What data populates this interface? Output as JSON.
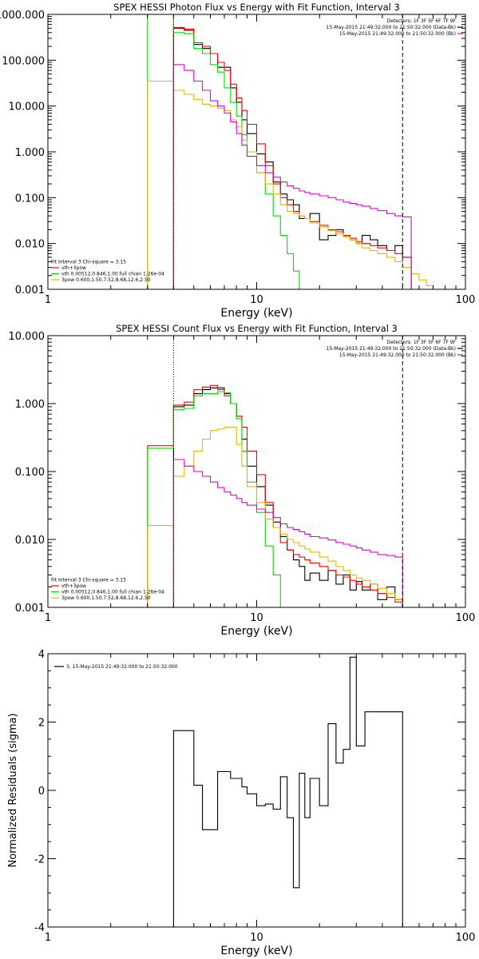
{
  "colors": {
    "data": "#000000",
    "total": "#ff0000",
    "vth": "#00dd00",
    "3pow": "#ddbb00",
    "background": "#dd00dd",
    "axes": "#000000"
  },
  "chart_data": [
    {
      "type": "line",
      "title": "SPEX HESSI Photon Flux vs Energy with Fit Function, Interval 3",
      "xlabel": "Energy (keV)",
      "ylabel": "",
      "x_scale": "log",
      "y_scale": "log",
      "xlim": [
        1,
        100
      ],
      "ylim": [
        0.001,
        1000
      ],
      "xticks": [
        1,
        10,
        100
      ],
      "xtick_labels": [
        "1",
        "10",
        "100"
      ],
      "yticks": [
        0.001,
        0.01,
        0.1,
        1,
        10,
        100,
        1000
      ],
      "ytick_labels": [
        "0.001",
        "0.010",
        "0.100",
        "1.000",
        "10.000",
        "100.000",
        "1000.000"
      ],
      "legend_topright": [
        "Detectors: 1F 3F 5F 6F 7F 9F",
        "15-May-2015 21:49:32.000 to 21:50:32.000 (Data-Bk)",
        "15-May-2015 21:49:32.000 to 21:50:32.000 (Bk)"
      ],
      "legend_bottomleft": [
        "Fit Interval 3   Chi-square = 3.15",
        "vth+3pow",
        "vth 0.00512,0.846,1.00  full chian 1.26e-04",
        "3pow 0.600,1.50,7.52,8.68,12.6,2.50"
      ],
      "vlines": [
        {
          "x": 4.0,
          "style": "dotted",
          "color": "black"
        },
        {
          "x": 50.0,
          "style": "dashed",
          "color": "black"
        }
      ],
      "bin_edges": [
        3,
        4,
        4.5,
        5,
        5.5,
        6,
        6.5,
        7,
        7.5,
        8,
        8.5,
        9,
        10,
        11,
        12,
        13,
        14,
        15,
        16,
        17,
        18,
        20,
        22,
        24,
        26,
        28,
        30,
        32,
        35,
        38,
        42,
        46,
        50,
        55,
        60,
        65,
        70,
        80
      ],
      "series": [
        {
          "name": "Data-Bk",
          "color_key": "data",
          "style": "step",
          "x_start": 4,
          "values": [
            500,
            450,
            220,
            180,
            140,
            70,
            70,
            25,
            12,
            5,
            2.5,
            0.9,
            0.6,
            0.22,
            0.12,
            0.09,
            0.07,
            0.035,
            0.035,
            0.045,
            0.012,
            0.015,
            0.02,
            0.015,
            0.012,
            0.01,
            0.015,
            0.012,
            0.009,
            0.007,
            0.009,
            0.005
          ]
        },
        {
          "name": "vth+3pow",
          "color_key": "total",
          "style": "step",
          "x_start": 4,
          "values": [
            520,
            480,
            240,
            200,
            140,
            90,
            60,
            30,
            15,
            8,
            4,
            1.5,
            0.5,
            0.2,
            0.1,
            0.07,
            0.05,
            0.04,
            0.035,
            0.03,
            0.025,
            0.02,
            0.018,
            0.015,
            0.013,
            0.011,
            0.01,
            0.009,
            0.008,
            0.007,
            0.006,
            0.005
          ]
        },
        {
          "name": "vth",
          "color_key": "vth",
          "style": "step",
          "x_start": 3,
          "values": [
            2000,
            400,
            380,
            180,
            140,
            80,
            55,
            25,
            12,
            6,
            2.4,
            0.8,
            0.35,
            0.12,
            0.04,
            0.015,
            0.006,
            0.0025,
            0.0008
          ]
        },
        {
          "name": "3pow",
          "color_key": "3pow",
          "style": "step",
          "x_start": 3,
          "values": [
            35,
            22,
            18,
            14,
            11,
            10,
            9,
            8,
            5,
            3.5,
            1.8,
            1.0,
            0.35,
            0.2,
            0.12,
            0.07,
            0.05,
            0.045,
            0.04,
            0.035,
            0.028,
            0.023,
            0.019,
            0.016,
            0.014,
            0.012,
            0.01,
            0.008,
            0.007,
            0.006,
            0.005,
            0.004,
            0.003,
            0.0022,
            0.0016,
            0.0012,
            0.0008
          ]
        },
        {
          "name": "Bk",
          "color_key": "background",
          "style": "step",
          "x_start": 4,
          "values": [
            80,
            60,
            35,
            22,
            13,
            10,
            7,
            4.5,
            2.5,
            1.4,
            0.8,
            0.5,
            0.35,
            0.28,
            0.22,
            0.18,
            0.16,
            0.14,
            0.13,
            0.12,
            0.11,
            0.1,
            0.09,
            0.08,
            0.075,
            0.07,
            0.065,
            0.058,
            0.052,
            0.045,
            0.04,
            0.038
          ]
        }
      ]
    },
    {
      "type": "line",
      "title": "SPEX HESSI Count Flux vs Energy with Fit Function, Interval 3",
      "xlabel": "Energy (keV)",
      "ylabel": "",
      "x_scale": "log",
      "y_scale": "log",
      "xlim": [
        1,
        100
      ],
      "ylim": [
        0.001,
        10
      ],
      "xticks": [
        1,
        10,
        100
      ],
      "xtick_labels": [
        "1",
        "10",
        "100"
      ],
      "yticks": [
        0.001,
        0.01,
        0.1,
        1,
        10
      ],
      "ytick_labels": [
        "0.001",
        "0.010",
        "0.100",
        "1.000",
        "10.000"
      ],
      "legend_topright": [
        "Detectors: 1F 3F 5F 6F 7F 9F",
        "15-May-2015 21:49:32.000 to 21:50:32.000 (Data-Bk)",
        "15-May-2015 21:49:32.000 to 21:50:32.000 (Bk)"
      ],
      "legend_bottomleft": [
        "Fit Interval 3   Chi-square = 3.15",
        "vth+3pow",
        "vth 0.00512,0.846,1.00  full chian 1.26e-04",
        "3pow 0.600,1.50,7.52,8.68,12.6,2.50"
      ],
      "vlines": [
        {
          "x": 4.0,
          "style": "dotted",
          "color": "black"
        },
        {
          "x": 50.0,
          "style": "dashed",
          "color": "black"
        }
      ],
      "bin_edges": [
        3,
        4,
        4.5,
        5,
        5.5,
        6,
        6.5,
        7,
        7.5,
        8,
        8.5,
        9,
        10,
        11,
        12,
        13,
        14,
        15,
        16,
        17,
        18,
        20,
        22,
        24,
        26,
        28,
        30,
        32,
        35,
        38,
        42,
        46,
        50
      ],
      "series": [
        {
          "name": "Data-Bk",
          "color_key": "data",
          "style": "step",
          "x_start": 4,
          "values": [
            0.9,
            0.95,
            1.4,
            1.6,
            1.7,
            1.7,
            1.4,
            1.0,
            0.65,
            0.3,
            0.12,
            0.06,
            0.032,
            0.018,
            0.011,
            0.007,
            0.005,
            0.004,
            0.0025,
            0.0032,
            0.0025,
            0.0035,
            0.0022,
            0.003,
            0.0018,
            0.0024,
            0.0018,
            0.0022,
            0.0013,
            0.002,
            0.0013,
            0.002
          ]
        },
        {
          "name": "vth+3pow",
          "color_key": "total",
          "style": "step",
          "x_start": 3,
          "values": [
            0.24,
            0.95,
            1.05,
            1.6,
            1.75,
            1.85,
            1.6,
            1.3,
            1.0,
            0.65,
            0.45,
            0.2,
            0.09,
            0.035,
            0.015,
            0.009,
            0.007,
            0.006,
            0.0055,
            0.005,
            0.0045,
            0.004,
            0.0035,
            0.003,
            0.0028,
            0.0025,
            0.0022,
            0.002,
            0.0018,
            0.0016,
            0.0014,
            0.0012
          ]
        },
        {
          "name": "vth",
          "color_key": "vth",
          "style": "step",
          "x_start": 3,
          "values": [
            0.22,
            0.82,
            0.85,
            1.3,
            1.4,
            1.4,
            1.5,
            1.45,
            1.0,
            0.6,
            0.2,
            0.07,
            0.025,
            0.008,
            0.003,
            0.0008
          ]
        },
        {
          "name": "3pow",
          "color_key": "3pow",
          "style": "step",
          "x_start": 3,
          "values": [
            0.016,
            0.085,
            0.12,
            0.2,
            0.3,
            0.4,
            0.42,
            0.45,
            0.45,
            0.25,
            0.12,
            0.06,
            0.035,
            0.02,
            0.015,
            0.012,
            0.01,
            0.009,
            0.008,
            0.0072,
            0.0065,
            0.0055,
            0.0048,
            0.004,
            0.0035,
            0.003,
            0.0027,
            0.0025,
            0.0022,
            0.0019,
            0.0016,
            0.0013,
            0.001
          ]
        },
        {
          "name": "Bk",
          "color_key": "background",
          "style": "step",
          "x_start": 4,
          "values": [
            0.15,
            0.12,
            0.1,
            0.085,
            0.07,
            0.058,
            0.05,
            0.045,
            0.04,
            0.035,
            0.032,
            0.028,
            0.025,
            0.021,
            0.017,
            0.015,
            0.014,
            0.013,
            0.012,
            0.011,
            0.0105,
            0.0098,
            0.009,
            0.0085,
            0.008,
            0.0075,
            0.007,
            0.0065,
            0.006,
            0.0058,
            0.0055,
            0.0052
          ]
        }
      ]
    },
    {
      "type": "line",
      "title": "",
      "xlabel": "Energy (keV)",
      "ylabel": "Normalized Residuals (sigma)",
      "x_scale": "log",
      "y_scale": "linear",
      "xlim": [
        1,
        100
      ],
      "ylim": [
        -4,
        4
      ],
      "xticks": [
        1,
        10,
        100
      ],
      "xtick_labels": [
        "1",
        "10",
        "100"
      ],
      "yticks": [
        -4,
        -2,
        0,
        2,
        4
      ],
      "ytick_labels": [
        "-4",
        "-2",
        "0",
        "2",
        "4"
      ],
      "legend_topleft": [
        "3, 15-May-2015 21:49:32.000 to 21:50:32.000"
      ],
      "bin_edges": [
        4,
        5,
        5.5,
        6.5,
        7.5,
        8.5,
        9,
        10,
        11,
        12,
        13,
        14,
        15,
        16,
        17,
        18,
        20,
        22,
        24,
        26,
        28,
        30,
        33,
        36,
        40,
        44,
        50
      ],
      "series": [
        {
          "name": "",
          "color_key": "data",
          "style": "step",
          "x_start": 4,
          "values": [
            1.75,
            0.15,
            -1.15,
            0.55,
            0.35,
            0.1,
            -0.1,
            -0.45,
            -0.4,
            -0.55,
            0.4,
            -0.8,
            -2.85,
            0.5,
            -0.8,
            0.35,
            -0.45,
            1.95,
            0.8,
            1.2,
            3.9,
            1.3,
            2.3,
            2.3,
            2.3,
            2.3
          ]
        }
      ]
    }
  ]
}
